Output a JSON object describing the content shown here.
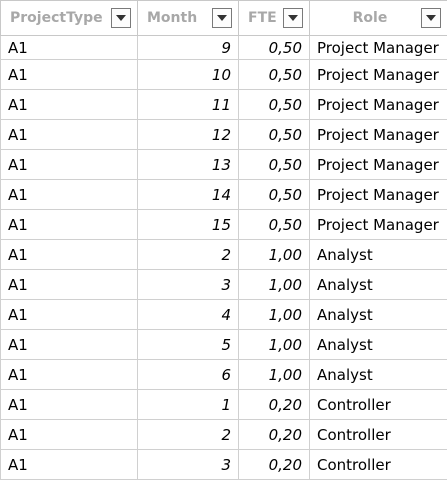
{
  "table": {
    "columns": [
      {
        "label": "ProjectType"
      },
      {
        "label": "Month"
      },
      {
        "label": "FTE"
      },
      {
        "label": "Role"
      }
    ],
    "rows": [
      {
        "project_type": "A1",
        "month": "9",
        "fte": "0,50",
        "role": "Project Manager"
      },
      {
        "project_type": "A1",
        "month": "10",
        "fte": "0,50",
        "role": "Project Manager"
      },
      {
        "project_type": "A1",
        "month": "11",
        "fte": "0,50",
        "role": "Project Manager"
      },
      {
        "project_type": "A1",
        "month": "12",
        "fte": "0,50",
        "role": "Project Manager"
      },
      {
        "project_type": "A1",
        "month": "13",
        "fte": "0,50",
        "role": "Project Manager"
      },
      {
        "project_type": "A1",
        "month": "14",
        "fte": "0,50",
        "role": "Project Manager"
      },
      {
        "project_type": "A1",
        "month": "15",
        "fte": "0,50",
        "role": "Project Manager"
      },
      {
        "project_type": "A1",
        "month": "2",
        "fte": "1,00",
        "role": "Analyst"
      },
      {
        "project_type": "A1",
        "month": "3",
        "fte": "1,00",
        "role": "Analyst"
      },
      {
        "project_type": "A1",
        "month": "4",
        "fte": "1,00",
        "role": "Analyst"
      },
      {
        "project_type": "A1",
        "month": "5",
        "fte": "1,00",
        "role": "Analyst"
      },
      {
        "project_type": "A1",
        "month": "6",
        "fte": "1,00",
        "role": "Analyst"
      },
      {
        "project_type": "A1",
        "month": "1",
        "fte": "0,20",
        "role": "Controller"
      },
      {
        "project_type": "A1",
        "month": "2",
        "fte": "0,20",
        "role": "Controller"
      },
      {
        "project_type": "A1",
        "month": "3",
        "fte": "0,20",
        "role": "Controller"
      }
    ]
  }
}
